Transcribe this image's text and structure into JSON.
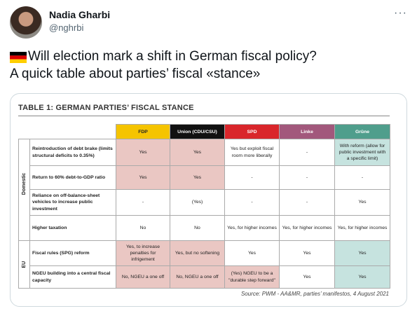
{
  "author": {
    "name": "Nadia Gharbi",
    "handle": "@nghrbi"
  },
  "tweet": {
    "lines": [
      "Will election mark a shift in German fiscal policy?",
      "A quick table about parties’ fiscal «stance»"
    ]
  },
  "table": {
    "title": "TABLE 1: GERMAN PARTIES’ FISCAL STANCE",
    "columns": [
      "FDP",
      "Union (CDU/CSU)",
      "SPD",
      "Linke",
      "Grüne"
    ],
    "groups": [
      {
        "label": "Domestic",
        "rows": [
          {
            "label": "Reintroduction of debt brake (limits structural deficits to 0.35%)",
            "cells": [
              "Yes",
              "Yes",
              "Yes but exploit fiscal room more liberally",
              "-",
              "With reform (allow for public investment with a specific limit)"
            ]
          },
          {
            "label": "Return to 60% debt-to-GDP ratio",
            "cells": [
              "Yes",
              "Yes",
              "-",
              "-",
              "-"
            ]
          },
          {
            "label": "Reliance on off-balance-sheet vehicles to increase public investment",
            "cells": [
              "-",
              "(Yes)",
              "-",
              "-",
              "Yes"
            ]
          },
          {
            "label": "Higher taxation",
            "cells": [
              "No",
              "No",
              "Yes, for higher incomes",
              "Yes, for higher incomes",
              "Yes, for higher incomes"
            ]
          }
        ]
      },
      {
        "label": "EU",
        "rows": [
          {
            "label": "Fiscal rules (SPG) reform",
            "cells": [
              "Yes, to increase penalties for infrigement",
              "Yes, but no softening",
              "Yes",
              "Yes",
              "Yes"
            ]
          },
          {
            "label": "NGEU building into a central fiscal capacity",
            "cells": [
              "No, NGEU a one off",
              "No, NGEU a one off",
              "(Yes) NGEU to be a \"durable step forward\"",
              "Yes",
              "Yes"
            ]
          }
        ]
      }
    ],
    "source": "Source: PWM - AA&MR, parties’ manifestos, 4 August 2021"
  }
}
